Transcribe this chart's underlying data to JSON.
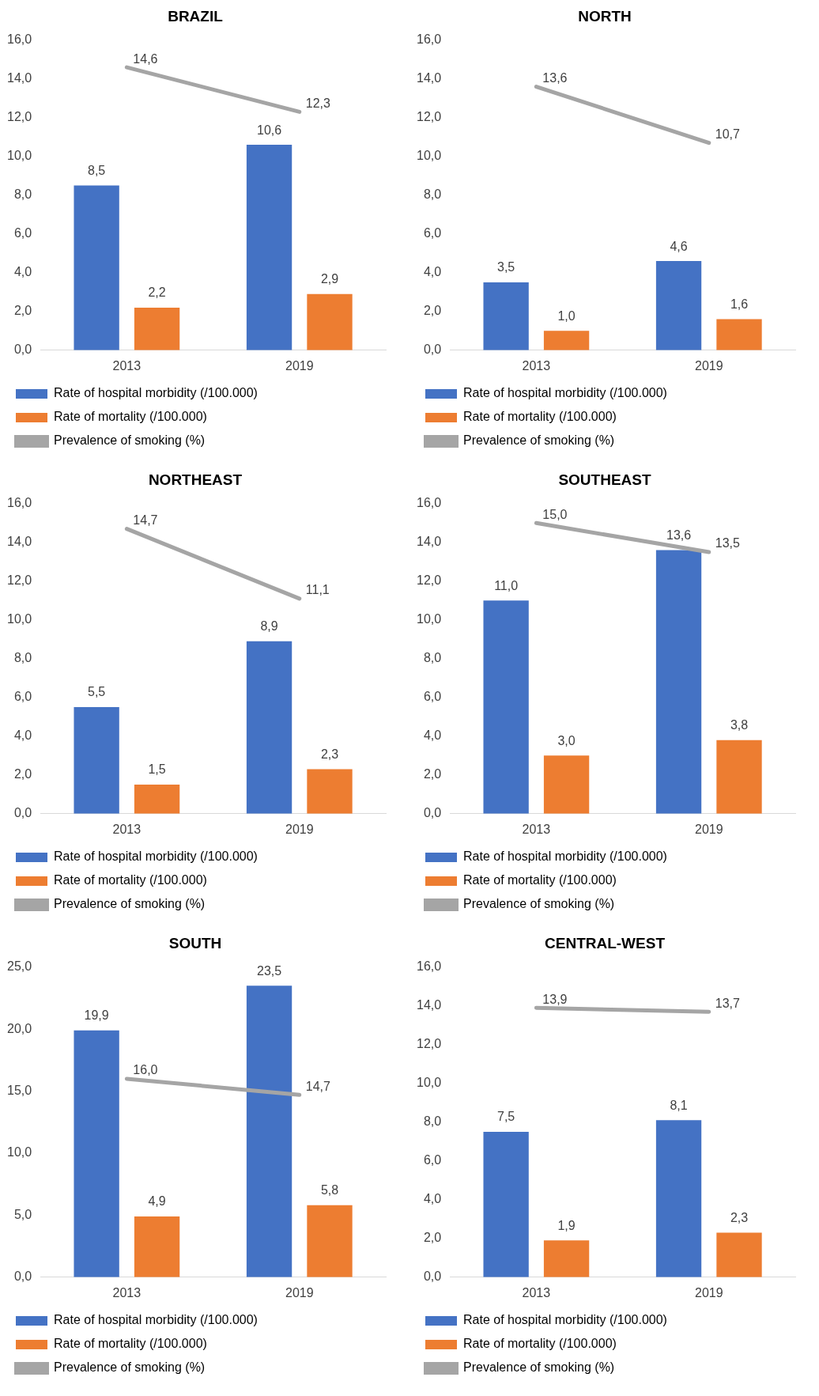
{
  "chart_data": [
    {
      "type": "bar",
      "title": "BRAZIL",
      "categories": [
        "2013",
        "2019"
      ],
      "ylim": [
        0,
        16
      ],
      "yticks": [
        {
          "value": 0,
          "label": "0,0"
        },
        {
          "value": 2,
          "label": "2,0"
        },
        {
          "value": 4,
          "label": "4,0"
        },
        {
          "value": 6,
          "label": "6,0"
        },
        {
          "value": 8,
          "label": "8,0"
        },
        {
          "value": 10,
          "label": "10,0"
        },
        {
          "value": 12,
          "label": "12,0"
        },
        {
          "value": 14,
          "label": "14,0"
        },
        {
          "value": 16,
          "label": "16,0"
        }
      ],
      "grid": false,
      "legend": "bottom",
      "series": [
        {
          "name": "Rate of hospital morbidity (/100.000)",
          "color": "#4472c4",
          "values": [
            8.5,
            10.6
          ],
          "value_labels": [
            "8,5",
            "10,6"
          ]
        },
        {
          "name": "Rate of mortality (/100.000)",
          "color": "#ed7d31",
          "values": [
            2.2,
            2.9
          ],
          "value_labels": [
            "2,2",
            "2,9"
          ]
        },
        {
          "name": "Prevalence of smoking (%)",
          "type": "line",
          "color": "#a5a5a5",
          "values": [
            14.6,
            12.3
          ],
          "value_labels": [
            "14,6",
            "12,3"
          ]
        }
      ]
    },
    {
      "type": "bar",
      "title": "NORTH",
      "categories": [
        "2013",
        "2019"
      ],
      "ylim": [
        0,
        16
      ],
      "yticks": [
        {
          "value": 0,
          "label": "0,0"
        },
        {
          "value": 2,
          "label": "2,0"
        },
        {
          "value": 4,
          "label": "4,0"
        },
        {
          "value": 6,
          "label": "6,0"
        },
        {
          "value": 8,
          "label": "8,0"
        },
        {
          "value": 10,
          "label": "10,0"
        },
        {
          "value": 12,
          "label": "12,0"
        },
        {
          "value": 14,
          "label": "14,0"
        },
        {
          "value": 16,
          "label": "16,0"
        }
      ],
      "grid": false,
      "legend": "bottom",
      "series": [
        {
          "name": "Rate of hospital morbidity (/100.000)",
          "color": "#4472c4",
          "values": [
            3.5,
            4.6
          ],
          "value_labels": [
            "3,5",
            "4,6"
          ]
        },
        {
          "name": "Rate of mortality (/100.000)",
          "color": "#ed7d31",
          "values": [
            1.0,
            1.6
          ],
          "value_labels": [
            "1,0",
            "1,6"
          ]
        },
        {
          "name": "Prevalence of smoking (%)",
          "type": "line",
          "color": "#a5a5a5",
          "values": [
            13.6,
            10.7
          ],
          "value_labels": [
            "13,6",
            "10,7"
          ]
        }
      ]
    },
    {
      "type": "bar",
      "title": "NORTHEAST",
      "categories": [
        "2013",
        "2019"
      ],
      "ylim": [
        0,
        16
      ],
      "yticks": [
        {
          "value": 0,
          "label": "0,0"
        },
        {
          "value": 2,
          "label": "2,0"
        },
        {
          "value": 4,
          "label": "4,0"
        },
        {
          "value": 6,
          "label": "6,0"
        },
        {
          "value": 8,
          "label": "8,0"
        },
        {
          "value": 10,
          "label": "10,0"
        },
        {
          "value": 12,
          "label": "12,0"
        },
        {
          "value": 14,
          "label": "14,0"
        },
        {
          "value": 16,
          "label": "16,0"
        }
      ],
      "grid": false,
      "legend": "bottom",
      "series": [
        {
          "name": "Rate of hospital morbidity (/100.000)",
          "color": "#4472c4",
          "values": [
            5.5,
            8.9
          ],
          "value_labels": [
            "5,5",
            "8,9"
          ]
        },
        {
          "name": "Rate of mortality (/100.000)",
          "color": "#ed7d31",
          "values": [
            1.5,
            2.3
          ],
          "value_labels": [
            "1,5",
            "2,3"
          ]
        },
        {
          "name": "Prevalence of smoking (%)",
          "type": "line",
          "color": "#a5a5a5",
          "values": [
            14.7,
            11.1
          ],
          "value_labels": [
            "14,7",
            "11,1"
          ]
        }
      ]
    },
    {
      "type": "bar",
      "title": "SOUTHEAST",
      "categories": [
        "2013",
        "2019"
      ],
      "ylim": [
        0,
        16
      ],
      "yticks": [
        {
          "value": 0,
          "label": "0,0"
        },
        {
          "value": 2,
          "label": "2,0"
        },
        {
          "value": 4,
          "label": "4,0"
        },
        {
          "value": 6,
          "label": "6,0"
        },
        {
          "value": 8,
          "label": "8,0"
        },
        {
          "value": 10,
          "label": "10,0"
        },
        {
          "value": 12,
          "label": "12,0"
        },
        {
          "value": 14,
          "label": "14,0"
        },
        {
          "value": 16,
          "label": "16,0"
        }
      ],
      "grid": false,
      "legend": "bottom",
      "series": [
        {
          "name": "Rate of hospital morbidity (/100.000)",
          "color": "#4472c4",
          "values": [
            11.0,
            13.6
          ],
          "value_labels": [
            "11,0",
            "13,6"
          ]
        },
        {
          "name": "Rate of mortality (/100.000)",
          "color": "#ed7d31",
          "values": [
            3.0,
            3.8
          ],
          "value_labels": [
            "3,0",
            "3,8"
          ]
        },
        {
          "name": "Prevalence of smoking (%)",
          "type": "line",
          "color": "#a5a5a5",
          "values": [
            15.0,
            13.5
          ],
          "value_labels": [
            "15,0",
            "13,5"
          ]
        }
      ]
    },
    {
      "type": "bar",
      "title": "SOUTH",
      "categories": [
        "2013",
        "2019"
      ],
      "ylim": [
        0,
        25
      ],
      "yticks": [
        {
          "value": 0,
          "label": "0,0"
        },
        {
          "value": 5,
          "label": "5,0"
        },
        {
          "value": 10,
          "label": "10,0"
        },
        {
          "value": 15,
          "label": "15,0"
        },
        {
          "value": 20,
          "label": "20,0"
        },
        {
          "value": 25,
          "label": "25,0"
        }
      ],
      "grid": false,
      "legend": "bottom",
      "series": [
        {
          "name": "Rate of hospital morbidity (/100.000)",
          "color": "#4472c4",
          "values": [
            19.9,
            23.5
          ],
          "value_labels": [
            "19,9",
            "23,5"
          ]
        },
        {
          "name": "Rate of mortality (/100.000)",
          "color": "#ed7d31",
          "values": [
            4.9,
            5.8
          ],
          "value_labels": [
            "4,9",
            "5,8"
          ]
        },
        {
          "name": "Prevalence of smoking (%)",
          "type": "line",
          "color": "#a5a5a5",
          "values": [
            16.0,
            14.7
          ],
          "value_labels": [
            "16,0",
            "14,7"
          ]
        }
      ]
    },
    {
      "type": "bar",
      "title": "CENTRAL-WEST",
      "categories": [
        "2013",
        "2019"
      ],
      "ylim": [
        0,
        16
      ],
      "yticks": [
        {
          "value": 0,
          "label": "0,0"
        },
        {
          "value": 2,
          "label": "2,0"
        },
        {
          "value": 4,
          "label": "4,0"
        },
        {
          "value": 6,
          "label": "6,0"
        },
        {
          "value": 8,
          "label": "8,0"
        },
        {
          "value": 10,
          "label": "10,0"
        },
        {
          "value": 12,
          "label": "12,0"
        },
        {
          "value": 14,
          "label": "14,0"
        },
        {
          "value": 16,
          "label": "16,0"
        }
      ],
      "grid": false,
      "legend": "bottom",
      "series": [
        {
          "name": "Rate of hospital morbidity (/100.000)",
          "color": "#4472c4",
          "values": [
            7.5,
            8.1
          ],
          "value_labels": [
            "7,5",
            "8,1"
          ]
        },
        {
          "name": "Rate of mortality (/100.000)",
          "color": "#ed7d31",
          "values": [
            1.9,
            2.3
          ],
          "value_labels": [
            "1,9",
            "2,3"
          ]
        },
        {
          "name": "Prevalence of smoking (%)",
          "type": "line",
          "color": "#a5a5a5",
          "values": [
            13.9,
            13.7
          ],
          "value_labels": [
            "13,9",
            "13,7"
          ]
        }
      ]
    }
  ]
}
